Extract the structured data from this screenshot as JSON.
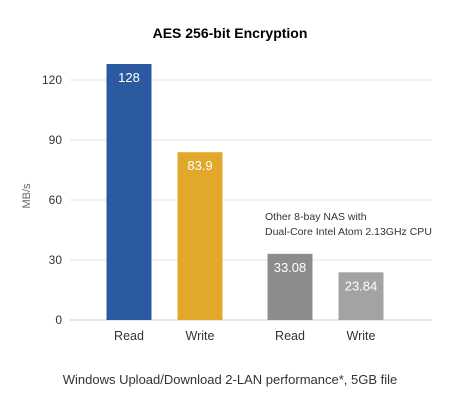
{
  "chart_data": {
    "type": "bar",
    "title": "AES 256-bit Encryption",
    "ylabel": "MB/s",
    "xlabel": "Windows Upload/Download 2-LAN performance*, 5GB file",
    "ylim": [
      0,
      130
    ],
    "yticks": [
      0,
      30,
      60,
      90,
      120
    ],
    "grid": true,
    "categories": [
      "Read",
      "Write",
      "Read",
      "Write"
    ],
    "values": [
      128,
      83.9,
      33.08,
      23.84
    ],
    "value_labels": [
      "128",
      "83.9",
      "33.08",
      "23.84"
    ],
    "colors": [
      "#2c5aa0",
      "#e2a82c",
      "#8c8c8c",
      "#a3a3a3"
    ],
    "annotation": [
      "Other 8-bay NAS with",
      "Dual-Core Intel Atom 2.13GHz CPU"
    ]
  }
}
